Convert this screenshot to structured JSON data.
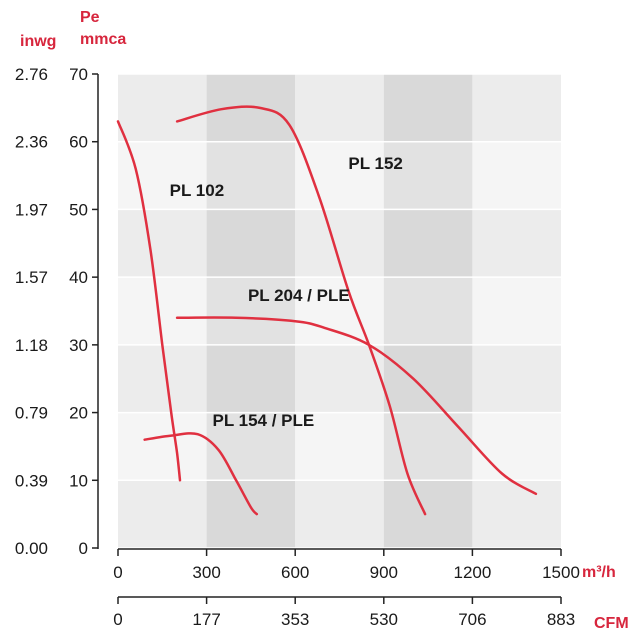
{
  "colors": {
    "curve": "#e03040",
    "unit_text": "#d7263d",
    "band_dark": "#d9d9d9",
    "band_light": "#ececec",
    "grid_light": "#f5f5f5",
    "axis": "#222222"
  },
  "units": {
    "inwg": "inwg",
    "pe": "Pe",
    "mmca": "mmca",
    "m3h": "m³/h",
    "cfm": "CFM"
  },
  "chart_data": {
    "type": "line",
    "x_primary": {
      "unit": "m³/h",
      "range": [
        0,
        1500
      ],
      "ticks": [
        0,
        300,
        600,
        900,
        1200,
        1500
      ]
    },
    "x_secondary": {
      "unit": "CFM",
      "range": [
        0,
        883
      ],
      "ticks": [
        0,
        177,
        353,
        530,
        706,
        883
      ]
    },
    "y_primary": {
      "unit": "mmca",
      "range": [
        0,
        70
      ],
      "ticks": [
        0,
        10,
        20,
        30,
        40,
        50,
        60,
        70
      ]
    },
    "y_secondary": {
      "unit": "inwg",
      "ticks": [
        "0.00",
        "0.39",
        "0.79",
        "1.18",
        "1.57",
        "1.97",
        "2.36",
        "2.76"
      ]
    },
    "grid": true,
    "series": [
      {
        "name": "PL 102",
        "label_at": [
          175,
          52
        ],
        "points": [
          [
            0,
            63
          ],
          [
            60,
            56
          ],
          [
            110,
            44
          ],
          [
            150,
            30
          ],
          [
            180,
            20
          ],
          [
            200,
            14
          ],
          [
            210,
            10
          ]
        ]
      },
      {
        "name": "PL 152",
        "label_at": [
          780,
          56
        ],
        "points": [
          [
            200,
            63
          ],
          [
            350,
            64.8
          ],
          [
            480,
            65
          ],
          [
            580,
            62.5
          ],
          [
            680,
            52
          ],
          [
            780,
            38
          ],
          [
            850,
            30
          ],
          [
            920,
            21
          ],
          [
            980,
            11
          ],
          [
            1040,
            5
          ]
        ]
      },
      {
        "name": "PL 204 / PLE",
        "label_at": [
          440,
          36.5
        ],
        "points": [
          [
            200,
            34
          ],
          [
            400,
            34
          ],
          [
            600,
            33.5
          ],
          [
            700,
            32.5
          ],
          [
            850,
            30
          ],
          [
            1000,
            25
          ],
          [
            1150,
            18
          ],
          [
            1300,
            11
          ],
          [
            1415,
            8
          ]
        ]
      },
      {
        "name": "PL 154 / PLE",
        "label_at": [
          320,
          18
        ],
        "points": [
          [
            90,
            16
          ],
          [
            180,
            16.6
          ],
          [
            270,
            16.8
          ],
          [
            340,
            14.5
          ],
          [
            400,
            10
          ],
          [
            450,
            6
          ],
          [
            470,
            5
          ]
        ]
      }
    ]
  }
}
